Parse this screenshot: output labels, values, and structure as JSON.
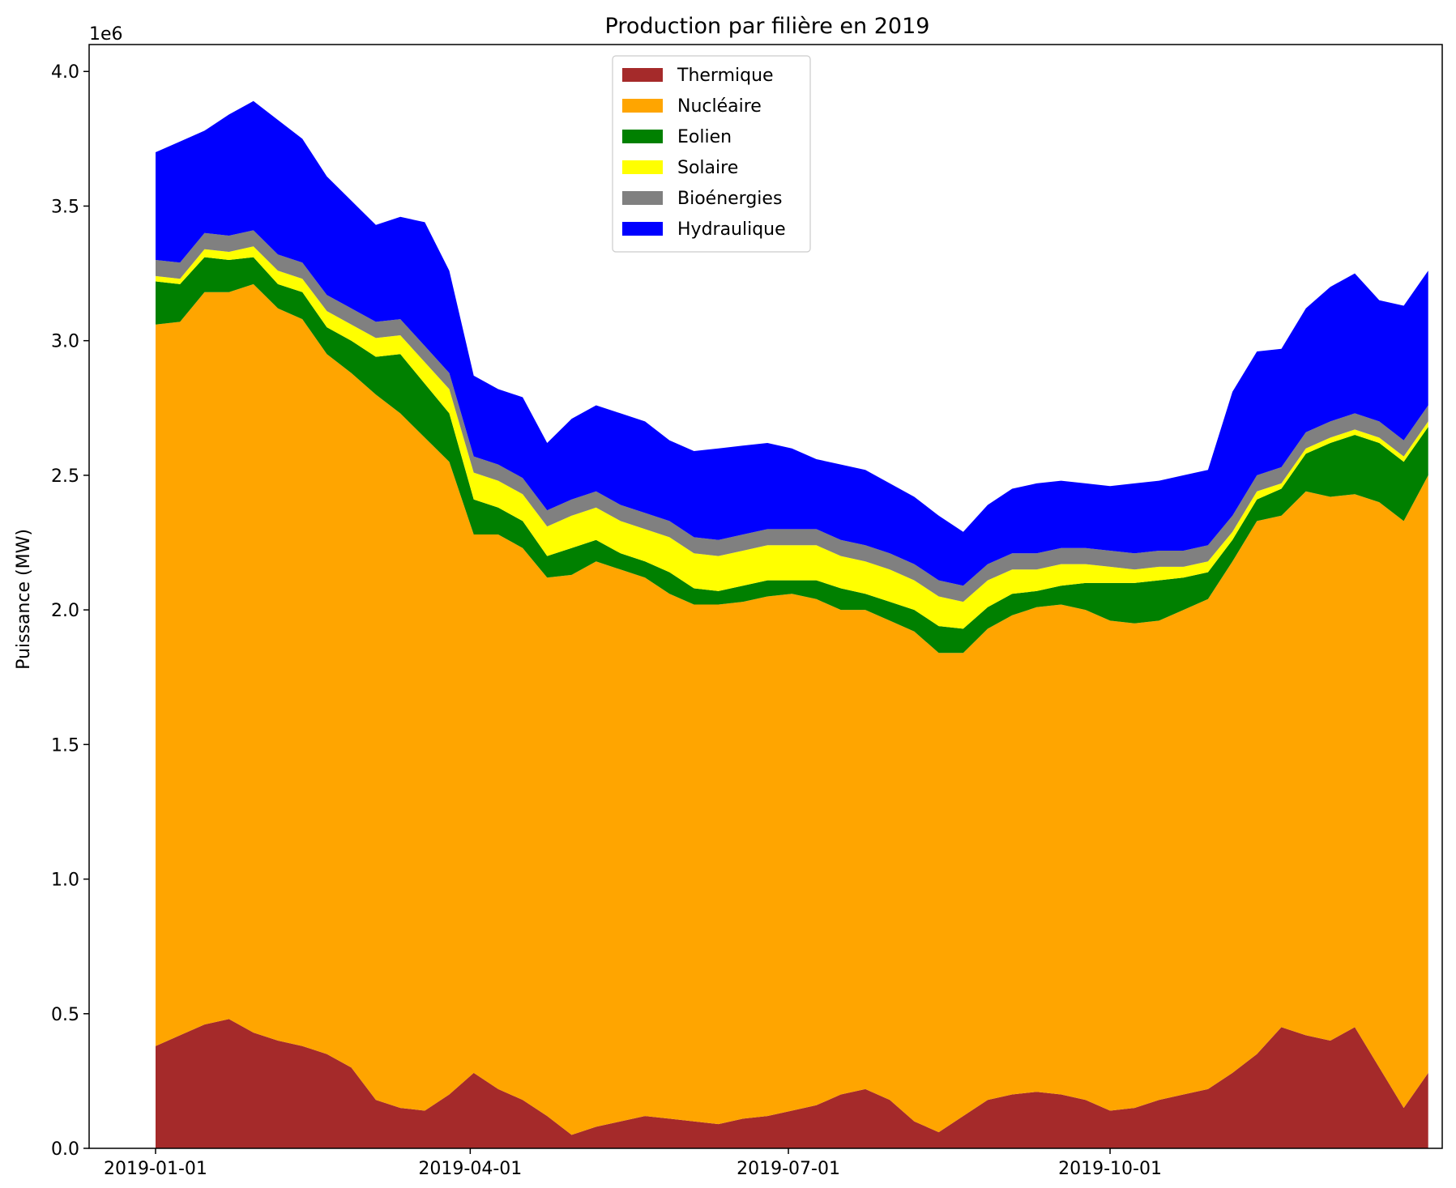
{
  "chart_data": {
    "type": "area",
    "stacked": true,
    "title": "Production par filière en 2019",
    "xlabel": "",
    "ylabel": "Puissance (MW)",
    "y_multiplier_label": "1e6",
    "ylim": [
      0,
      4.1
    ],
    "yticks": [
      0.0,
      0.5,
      1.0,
      1.5,
      2.0,
      2.5,
      3.0,
      3.5,
      4.0
    ],
    "ytick_labels": [
      "0.0",
      "0.5",
      "1.0",
      "1.5",
      "2.0",
      "2.5",
      "3.0",
      "3.5",
      "4.0"
    ],
    "xlim": [
      "2018-12-13",
      "2020-01-04"
    ],
    "xticks": [
      "2019-01-01",
      "2019-04-01",
      "2019-07-01",
      "2019-10-01"
    ],
    "legend_position": "upper center",
    "grid": false,
    "x": [
      "2019-01-01",
      "2019-01-08",
      "2019-01-15",
      "2019-01-22",
      "2019-01-29",
      "2019-02-05",
      "2019-02-12",
      "2019-02-19",
      "2019-02-26",
      "2019-03-05",
      "2019-03-12",
      "2019-03-19",
      "2019-03-26",
      "2019-04-02",
      "2019-04-09",
      "2019-04-16",
      "2019-04-23",
      "2019-04-30",
      "2019-05-07",
      "2019-05-14",
      "2019-05-21",
      "2019-05-28",
      "2019-06-04",
      "2019-06-11",
      "2019-06-18",
      "2019-06-25",
      "2019-07-02",
      "2019-07-09",
      "2019-07-16",
      "2019-07-23",
      "2019-07-30",
      "2019-08-06",
      "2019-08-13",
      "2019-08-20",
      "2019-08-27",
      "2019-09-03",
      "2019-09-10",
      "2019-09-17",
      "2019-09-24",
      "2019-10-01",
      "2019-10-08",
      "2019-10-15",
      "2019-10-22",
      "2019-10-29",
      "2019-11-05",
      "2019-11-12",
      "2019-11-19",
      "2019-11-26",
      "2019-12-03",
      "2019-12-10",
      "2019-12-17",
      "2019-12-24",
      "2019-12-31"
    ],
    "series": [
      {
        "name": "Thermique",
        "color": "#a52a2a",
        "values": [
          0.38,
          0.42,
          0.46,
          0.48,
          0.43,
          0.4,
          0.38,
          0.35,
          0.3,
          0.18,
          0.15,
          0.14,
          0.2,
          0.28,
          0.22,
          0.18,
          0.12,
          0.05,
          0.08,
          0.1,
          0.12,
          0.11,
          0.1,
          0.09,
          0.11,
          0.12,
          0.14,
          0.16,
          0.2,
          0.22,
          0.18,
          0.1,
          0.06,
          0.12,
          0.18,
          0.2,
          0.21,
          0.2,
          0.18,
          0.14,
          0.15,
          0.18,
          0.2,
          0.22,
          0.28,
          0.35,
          0.45,
          0.42,
          0.4,
          0.45,
          0.3,
          0.15,
          0.28
        ]
      },
      {
        "name": "Nucléaire",
        "color": "#ffa500",
        "values": [
          2.68,
          2.65,
          2.72,
          2.7,
          2.78,
          2.72,
          2.7,
          2.6,
          2.58,
          2.62,
          2.58,
          2.5,
          2.35,
          2.0,
          2.06,
          2.05,
          2.0,
          2.08,
          2.1,
          2.05,
          2.0,
          1.95,
          1.92,
          1.93,
          1.92,
          1.93,
          1.92,
          1.88,
          1.8,
          1.78,
          1.78,
          1.82,
          1.78,
          1.72,
          1.75,
          1.78,
          1.8,
          1.82,
          1.82,
          1.82,
          1.8,
          1.78,
          1.8,
          1.82,
          1.9,
          1.98,
          1.9,
          2.02,
          2.02,
          1.98,
          2.1,
          2.18,
          2.22
        ]
      },
      {
        "name": "Eolien",
        "color": "#008000",
        "values": [
          0.16,
          0.14,
          0.13,
          0.12,
          0.1,
          0.09,
          0.1,
          0.1,
          0.12,
          0.14,
          0.22,
          0.2,
          0.18,
          0.13,
          0.1,
          0.1,
          0.08,
          0.1,
          0.08,
          0.06,
          0.06,
          0.08,
          0.06,
          0.05,
          0.06,
          0.06,
          0.05,
          0.07,
          0.08,
          0.06,
          0.07,
          0.08,
          0.1,
          0.09,
          0.08,
          0.08,
          0.06,
          0.07,
          0.1,
          0.14,
          0.15,
          0.15,
          0.12,
          0.1,
          0.08,
          0.08,
          0.1,
          0.14,
          0.2,
          0.22,
          0.22,
          0.22,
          0.18
        ]
      },
      {
        "name": "Solaire",
        "color": "#ffff00",
        "values": [
          0.02,
          0.02,
          0.03,
          0.03,
          0.04,
          0.05,
          0.05,
          0.06,
          0.06,
          0.07,
          0.07,
          0.08,
          0.09,
          0.1,
          0.1,
          0.1,
          0.11,
          0.12,
          0.12,
          0.12,
          0.12,
          0.13,
          0.13,
          0.13,
          0.13,
          0.13,
          0.13,
          0.13,
          0.12,
          0.12,
          0.12,
          0.11,
          0.11,
          0.1,
          0.1,
          0.09,
          0.08,
          0.08,
          0.07,
          0.06,
          0.05,
          0.05,
          0.04,
          0.04,
          0.03,
          0.03,
          0.02,
          0.02,
          0.02,
          0.02,
          0.02,
          0.02,
          0.02
        ]
      },
      {
        "name": "Bioénergies",
        "color": "#808080",
        "values": [
          0.06,
          0.06,
          0.06,
          0.06,
          0.06,
          0.06,
          0.06,
          0.06,
          0.06,
          0.06,
          0.06,
          0.06,
          0.06,
          0.06,
          0.06,
          0.06,
          0.06,
          0.06,
          0.06,
          0.06,
          0.06,
          0.06,
          0.06,
          0.06,
          0.06,
          0.06,
          0.06,
          0.06,
          0.06,
          0.06,
          0.06,
          0.06,
          0.06,
          0.06,
          0.06,
          0.06,
          0.06,
          0.06,
          0.06,
          0.06,
          0.06,
          0.06,
          0.06,
          0.06,
          0.06,
          0.06,
          0.06,
          0.06,
          0.06,
          0.06,
          0.06,
          0.06,
          0.06
        ]
      },
      {
        "name": "Hydraulique",
        "color": "#0000ff",
        "values": [
          0.4,
          0.45,
          0.38,
          0.45,
          0.48,
          0.5,
          0.46,
          0.44,
          0.4,
          0.36,
          0.38,
          0.46,
          0.38,
          0.3,
          0.28,
          0.3,
          0.25,
          0.3,
          0.32,
          0.34,
          0.34,
          0.3,
          0.32,
          0.34,
          0.33,
          0.32,
          0.3,
          0.26,
          0.28,
          0.28,
          0.26,
          0.25,
          0.24,
          0.2,
          0.22,
          0.24,
          0.26,
          0.25,
          0.24,
          0.24,
          0.26,
          0.26,
          0.28,
          0.28,
          0.46,
          0.46,
          0.44,
          0.46,
          0.5,
          0.52,
          0.45,
          0.5,
          0.5
        ]
      }
    ]
  }
}
